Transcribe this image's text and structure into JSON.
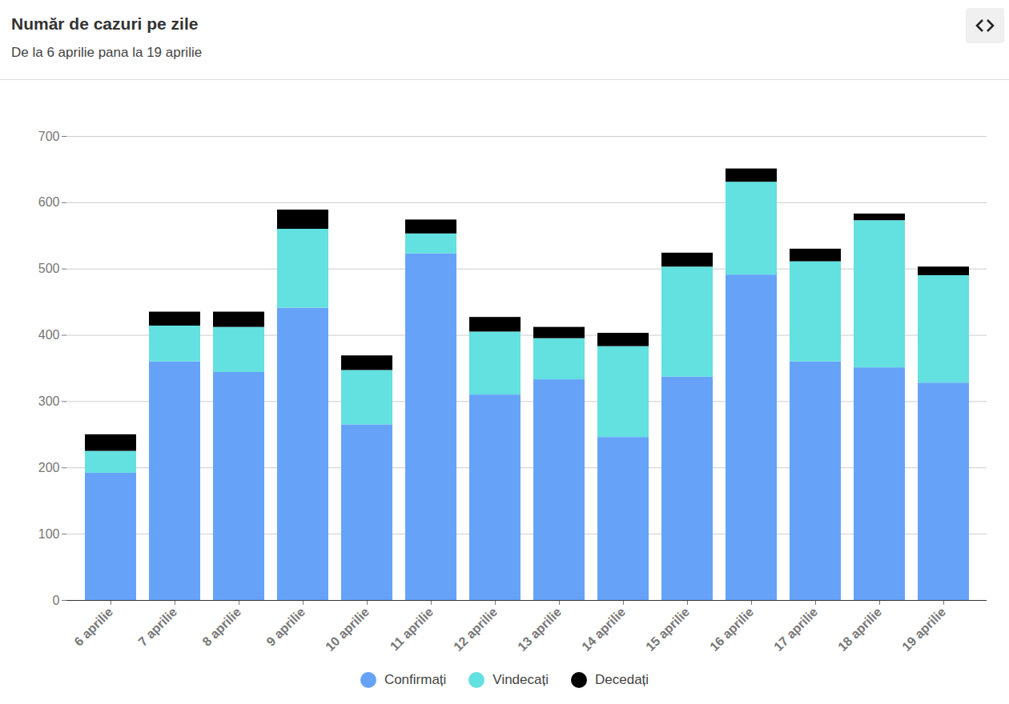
{
  "chart_data": {
    "type": "bar",
    "title": "Număr de cazuri pe zile",
    "subtitle": "De la 6 aprilie pana la 19 aprilie",
    "categories": [
      "6 aprilie",
      "7 aprilie",
      "8 aprilie",
      "9 aprilie",
      "10 aprilie",
      "11 aprilie",
      "12 aprilie",
      "13 aprilie",
      "14 aprilie",
      "15 aprilie",
      "16 aprilie",
      "17 aprilie",
      "18 aprilie",
      "19 aprilie"
    ],
    "series": [
      {
        "name": "Confirmați",
        "color": "#66a3f8",
        "values": [
          192,
          360,
          344,
          441,
          265,
          523,
          310,
          333,
          246,
          337,
          491,
          360,
          351,
          328
        ]
      },
      {
        "name": "Vindecați",
        "color": "#63e0e0",
        "values": [
          33,
          54,
          68,
          119,
          82,
          30,
          95,
          62,
          137,
          166,
          140,
          151,
          222,
          162
        ]
      },
      {
        "name": "Decedați",
        "color": "#000000",
        "values": [
          25,
          21,
          23,
          29,
          22,
          21,
          22,
          17,
          20,
          21,
          20,
          19,
          10,
          13
        ]
      }
    ],
    "ylim": [
      0,
      700
    ],
    "yticks": [
      0,
      100,
      200,
      300,
      400,
      500,
      600,
      700
    ],
    "grid": true,
    "stacked": true,
    "legend": "bottom"
  }
}
